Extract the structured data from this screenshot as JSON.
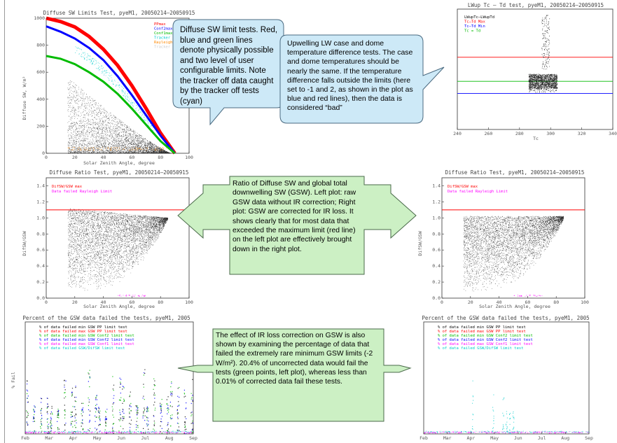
{
  "callouts": {
    "sw_limits": "Diffuse SW limit tests. Red, blue and green lines denote physically possible and two level of user configurable limits. Note the tracker off data caught by the tracker off tests (cyan)",
    "lw_tests": "Upwelling LW case and dome temperature difference tests. The case and dome temperatures should be nearly the same. If the temperature difference falls outside the limits (here set to -1 and 2, as shown in the plot as blue and red lines), then the data is considered “bad”",
    "ratio": "Ratio of Diffuse SW and global total downwelling SW (GSW). Left plot: raw GSW data without IR correction; Right plot: GSW are corrected for IR loss. It shows clearly that for most data that exceeded the maximum limit (red line) on the left plot are effectively brought down in the right plot.",
    "ir_effect": "The effect of IR loss correction on GSW is also shown by examining the percentage of data that failed the extremely rare minimum GSW limits (-2 W/m²).  20.4% of uncorrected data would fail the tests (green points, left plot), whereas less than 0.01% of corrected data fail these tests."
  },
  "chart_data": [
    {
      "type": "scatter",
      "title": "Diffuse SW Limits Test, pyeM1, 20050214–20050915",
      "xlabel": "Solar Zenith Angle, degree",
      "ylabel": "Diffuse SW, W/m²",
      "xlim": [
        0,
        100
      ],
      "ylim": [
        0,
        1000
      ],
      "xticks": [
        "0",
        "20",
        "40",
        "60",
        "80",
        "100"
      ],
      "yticks": [
        "0",
        "200",
        "400",
        "600",
        "800",
        "1000"
      ],
      "legend": [
        "PPmax",
        "Conf2max",
        "Conf1max",
        "Tracker Off",
        "Rayleigh Limit",
        "Tracker Test"
      ],
      "legend_colors": [
        "#ff0000",
        "#0000ff",
        "#00bb00",
        "#00cccc",
        "#ff8800",
        "#cccccc"
      ],
      "legend_position": "top-right",
      "series": [
        {
          "name": "PPmax",
          "color": "#ff0000",
          "x": [
            0,
            10,
            20,
            30,
            40,
            50,
            60,
            70,
            80,
            90
          ],
          "y": [
            1000,
            975,
            935,
            865,
            770,
            650,
            500,
            330,
            150,
            0
          ]
        },
        {
          "name": "Conf2max",
          "color": "#0000ff",
          "x": [
            0,
            10,
            20,
            30,
            40,
            50,
            60,
            70,
            80,
            90
          ],
          "y": [
            940,
            900,
            850,
            780,
            690,
            570,
            430,
            280,
            130,
            0
          ]
        },
        {
          "name": "Conf1max",
          "color": "#00bb00",
          "x": [
            0,
            10,
            20,
            30,
            40,
            50,
            60,
            70,
            80,
            90
          ],
          "y": [
            720,
            700,
            660,
            600,
            530,
            440,
            330,
            210,
            90,
            0
          ]
        }
      ]
    },
    {
      "type": "scatter",
      "title": "LWup Tc – Td test, pyeM1, 20050214–20050915",
      "xlabel": "Tc",
      "xlim": [
        220,
        340
      ],
      "ylim": [
        -4,
        6
      ],
      "xticks": [
        "240",
        "260",
        "280",
        "300",
        "320",
        "340"
      ],
      "legend": [
        "LWupTc–LWupTd",
        "Tc–Td Max",
        "Tc–Td Min",
        "Tc = Td"
      ],
      "legend_colors": [
        "#000000",
        "#ff0000",
        "#0000ff",
        "#00bb00"
      ],
      "legend_position": "top-left",
      "series": [
        {
          "name": "Tc–Td Max",
          "color": "#ff0000",
          "value": 2
        },
        {
          "name": "Tc–Td Min",
          "color": "#0000ff",
          "value": -1
        },
        {
          "name": "Tc = Td",
          "color": "#00bb00",
          "value": 0
        }
      ]
    },
    {
      "type": "scatter",
      "title": "Diffuse Ratio Test, pyeM1, 20050214–20050915",
      "xlabel": "Solar Zenith Angle, degree",
      "ylabel": "DifSW/GSW",
      "xlim": [
        0,
        100
      ],
      "ylim": [
        0,
        1.5
      ],
      "xticks": [
        "0",
        "20",
        "40",
        "60",
        "80",
        "100"
      ],
      "yticks": [
        "0.0",
        "0.2",
        "0.4",
        "0.6",
        "0.8",
        "1.0",
        "1.2",
        "1.4"
      ],
      "legend": [
        "DifSW/GSW max",
        "Data failed Rayleigh Limit"
      ],
      "legend_colors": [
        "#ff0000",
        "#ff00ff"
      ],
      "legend_position": "top-left",
      "series": [
        {
          "name": "DifSW/GSW max",
          "color": "#ff0000",
          "value": 1.1
        }
      ]
    },
    {
      "type": "scatter",
      "title": "Diffuse Ratio Test, pyeM1, 20050214–20050915",
      "xlabel": "Solar Zenith Angle, degree",
      "ylabel": "DifSW/GSW",
      "xlim": [
        0,
        100
      ],
      "ylim": [
        0,
        1.5
      ],
      "xticks": [
        "0",
        "20",
        "40",
        "60",
        "80",
        "100"
      ],
      "yticks": [
        "0.0",
        "0.2",
        "0.4",
        "0.6",
        "0.8",
        "1.0",
        "1.2",
        "1.4"
      ],
      "legend": [
        "DifSW/GSW max",
        "Data failed Rayleigh Limit"
      ],
      "legend_colors": [
        "#ff0000",
        "#ff00ff"
      ],
      "legend_position": "top-left",
      "series": [
        {
          "name": "DifSW/GSW max",
          "color": "#ff0000",
          "value": 1.1
        }
      ]
    },
    {
      "type": "scatter",
      "title": "Percent of the GSW data failed the tests, pyeM1, 2005",
      "ylabel": "% Fail",
      "xticks": [
        "Feb",
        "Mar",
        "Apr",
        "May",
        "Jun",
        "Jul",
        "Aug",
        "Sep"
      ],
      "legend": [
        "% of data failed min GSW PP limit test",
        "% of data failed max GSW PP limit test",
        "% of data failed min GSW Conf2 limit test",
        "% of data failed min GSW Conf2 limit test",
        "% of data failed max GSW Conf1 limit test",
        "% of data failed GSW/DifSW limit test"
      ],
      "legend_colors": [
        "#000000",
        "#ff0000",
        "#00bb00",
        "#0000ff",
        "#ff00ff",
        "#00cccc"
      ],
      "legend_position": "top-left"
    },
    {
      "type": "scatter",
      "title": "Percent of the GSW data failed the tests, pyeM1, 2005",
      "xticks": [
        "Feb",
        "Mar",
        "Apr",
        "May",
        "Jun",
        "Jul",
        "Aug",
        "Sep"
      ],
      "legend": [
        "% of data failed min GSW PP limit test",
        "% of data failed max GSW PP limit test",
        "% of data failed min GSW Conf2 limit test",
        "% of data failed min GSW Conf2 limit test",
        "% of data failed max GSW Conf1 limit test",
        "% of data failed GSW/DifSW limit test"
      ],
      "legend_colors": [
        "#000000",
        "#ff0000",
        "#00bb00",
        "#0000ff",
        "#ff00ff",
        "#00cccc"
      ],
      "legend_position": "top-left"
    }
  ]
}
